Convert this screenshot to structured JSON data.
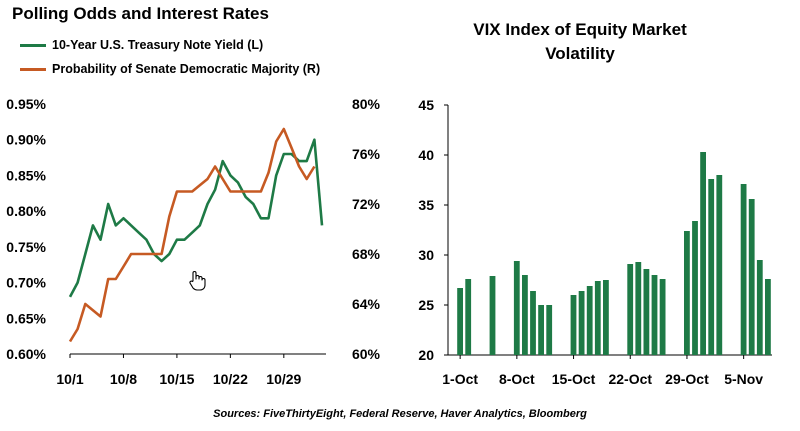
{
  "chart_data": [
    {
      "type": "line",
      "title": "Polling Odds and Interest Rates",
      "x_tick_labels": [
        "10/1",
        "10/8",
        "10/15",
        "10/22",
        "10/29"
      ],
      "y_left_ticks": [
        "0.60%",
        "0.65%",
        "0.70%",
        "0.75%",
        "0.80%",
        "0.85%",
        "0.90%",
        "0.95%"
      ],
      "y_left_range": [
        0.6,
        0.95
      ],
      "y_right_ticks": [
        "60%",
        "64%",
        "68%",
        "72%",
        "76%",
        "80%"
      ],
      "y_right_range": [
        60,
        80
      ],
      "grid": false,
      "legend_position": "top-left",
      "series": [
        {
          "name": "10-Year U.S. Treasury Note Yield (L)",
          "axis": "left",
          "color": "#1e7a46",
          "points": [
            [
              "10/1",
              0.68
            ],
            [
              "10/2",
              0.7
            ],
            [
              "10/3",
              0.74
            ],
            [
              "10/4",
              0.78
            ],
            [
              "10/5",
              0.76
            ],
            [
              "10/6",
              0.81
            ],
            [
              "10/7",
              0.78
            ],
            [
              "10/8",
              0.79
            ],
            [
              "10/9",
              0.78
            ],
            [
              "10/10",
              0.77
            ],
            [
              "10/11",
              0.76
            ],
            [
              "10/12",
              0.74
            ],
            [
              "10/13",
              0.73
            ],
            [
              "10/14",
              0.74
            ],
            [
              "10/15",
              0.76
            ],
            [
              "10/16",
              0.76
            ],
            [
              "10/17",
              0.77
            ],
            [
              "10/18",
              0.78
            ],
            [
              "10/19",
              0.81
            ],
            [
              "10/20",
              0.83
            ],
            [
              "10/21",
              0.87
            ],
            [
              "10/22",
              0.85
            ],
            [
              "10/23",
              0.84
            ],
            [
              "10/24",
              0.82
            ],
            [
              "10/25",
              0.81
            ],
            [
              "10/26",
              0.79
            ],
            [
              "10/27",
              0.79
            ],
            [
              "10/28",
              0.85
            ],
            [
              "10/29",
              0.88
            ],
            [
              "10/30",
              0.88
            ],
            [
              "10/31",
              0.87
            ],
            [
              "11/1",
              0.87
            ],
            [
              "11/2",
              0.9
            ],
            [
              "11/3",
              0.78
            ]
          ]
        },
        {
          "name": "Probability of Senate Democratic Majority (R)",
          "axis": "right",
          "color": "#c65a23",
          "points": [
            [
              "10/1",
              61
            ],
            [
              "10/2",
              62
            ],
            [
              "10/3",
              64
            ],
            [
              "10/4",
              63.5
            ],
            [
              "10/5",
              63
            ],
            [
              "10/6",
              66
            ],
            [
              "10/7",
              66
            ],
            [
              "10/8",
              67
            ],
            [
              "10/9",
              68
            ],
            [
              "10/10",
              68
            ],
            [
              "10/11",
              68
            ],
            [
              "10/12",
              68
            ],
            [
              "10/13",
              68
            ],
            [
              "10/14",
              71
            ],
            [
              "10/15",
              73
            ],
            [
              "10/16",
              73
            ],
            [
              "10/17",
              73
            ],
            [
              "10/18",
              73.5
            ],
            [
              "10/19",
              74
            ],
            [
              "10/20",
              75
            ],
            [
              "10/21",
              74
            ],
            [
              "10/22",
              73
            ],
            [
              "10/23",
              73
            ],
            [
              "10/24",
              73
            ],
            [
              "10/25",
              73
            ],
            [
              "10/26",
              73
            ],
            [
              "10/27",
              74.5
            ],
            [
              "10/28",
              77
            ],
            [
              "10/29",
              78
            ],
            [
              "10/30",
              76.5
            ],
            [
              "10/31",
              75
            ],
            [
              "11/1",
              74
            ],
            [
              "11/2",
              75
            ]
          ]
        }
      ]
    },
    {
      "type": "bar",
      "title": "VIX Index of Equity Market Volatility",
      "x_tick_labels": [
        "1-Oct",
        "8-Oct",
        "15-Oct",
        "22-Oct",
        "29-Oct",
        "5-Nov"
      ],
      "y_ticks": [
        "20",
        "25",
        "30",
        "35",
        "40",
        "45"
      ],
      "ylim": [
        20,
        45
      ],
      "grid": false,
      "color": "#1e7a46",
      "categories": [
        "10/1",
        "10/2",
        "10/5",
        "10/8",
        "10/9",
        "10/10",
        "10/11",
        "10/12",
        "10/15",
        "10/16",
        "10/17",
        "10/18",
        "10/19",
        "10/22",
        "10/23",
        "10/24",
        "10/25",
        "10/26",
        "10/29",
        "10/30",
        "10/31",
        "11/1",
        "11/2",
        "11/5",
        "11/6",
        "11/7",
        "11/8"
      ],
      "values": [
        26.7,
        27.6,
        27.9,
        29.4,
        28.0,
        26.4,
        25.0,
        25.0,
        26.0,
        26.4,
        26.9,
        27.4,
        27.5,
        29.1,
        29.3,
        28.6,
        28.0,
        27.6,
        32.4,
        33.4,
        40.3,
        37.6,
        38.0,
        37.1,
        35.6,
        29.5,
        27.6
      ]
    }
  ],
  "left_panel": {
    "title": "Polling Odds and Interest Rates",
    "legend_1": "10-Year U.S. Treasury Note Yield (L)",
    "legend_2": "Probability of Senate Democratic Majority (R)"
  },
  "right_panel": {
    "title_line1": "VIX Index of Equity Market",
    "title_line2": "Volatility"
  },
  "source_note": "Sources: FiveThirtyEight, Federal Reserve, Haver Analytics, Bloomberg",
  "icons": {
    "cursor": "hand-pointer-icon"
  }
}
